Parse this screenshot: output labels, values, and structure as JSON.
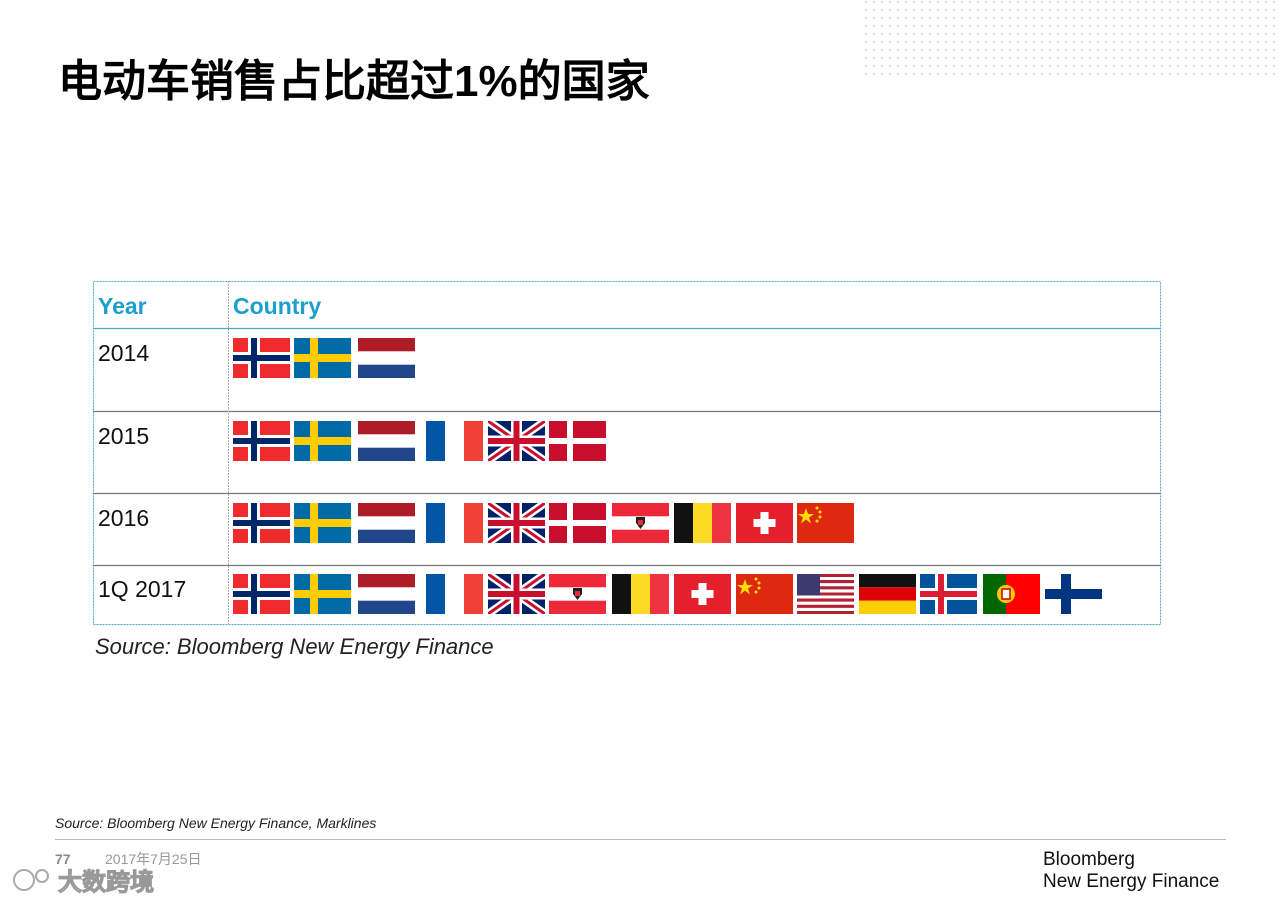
{
  "header": {
    "title": "电动车销售占比超过1%的国家"
  },
  "table": {
    "columns": [
      "Year",
      "Country"
    ],
    "rows": [
      "2014",
      "2015",
      "2016",
      "1Q 2017"
    ]
  },
  "table_source": "Source: Bloomberg New Energy Finance",
  "footer": {
    "source": "Source: Bloomberg New Energy Finance, Marklines",
    "page": "77",
    "date": "2017年7月25日",
    "logo": [
      "Bloomberg",
      "New Energy Finance"
    ],
    "watermark": "大数跨境"
  }
}
